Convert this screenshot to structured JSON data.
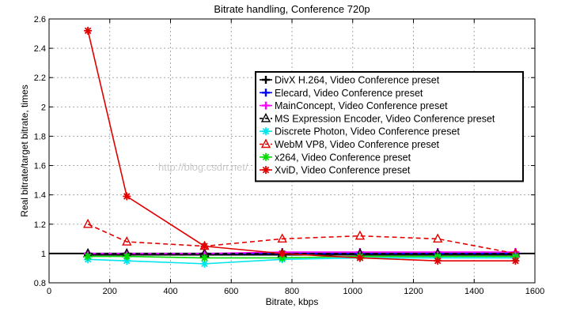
{
  "chart_data": {
    "type": "line",
    "title": "Bitrate handling, Conference 720p",
    "xlabel": "Bitrate, kbps",
    "ylabel": "Real bitrate/target bitrate, times",
    "xlim": [
      0,
      1600
    ],
    "ylim": [
      0.8,
      2.6
    ],
    "xticks": [
      0,
      200,
      400,
      600,
      800,
      1000,
      1200,
      1400,
      1600
    ],
    "yticks": [
      0.8,
      1,
      1.2,
      1.4,
      1.6,
      1.8,
      2,
      2.2,
      2.4,
      2.6
    ],
    "grid": true,
    "legend_position": "center-right",
    "watermark": "http://blog.csdn.net/...",
    "reference_line": {
      "y": 1.0,
      "color": "#000000"
    },
    "series": [
      {
        "name": "DivX H.264, Video Conference preset",
        "color": "#000000",
        "marker": "plus",
        "dash": "solid",
        "x": [
          128,
          256,
          512,
          768,
          1024,
          1280,
          1536
        ],
        "y": [
          0.99,
          0.99,
          0.99,
          0.99,
          0.99,
          0.99,
          0.99
        ]
      },
      {
        "name": "Elecard, Video Conference preset",
        "color": "#0000ff",
        "marker": "plus",
        "dash": "solid",
        "x": [
          128,
          256,
          512,
          768,
          1024,
          1280,
          1536
        ],
        "y": [
          1.0,
          1.0,
          1.0,
          1.0,
          1.0,
          1.0,
          1.0
        ]
      },
      {
        "name": "MainConcept, Video Conference preset",
        "color": "#ff00ff",
        "marker": "plus",
        "dash": "solid",
        "x": [
          128,
          256,
          512,
          768,
          1024,
          1280,
          1536
        ],
        "y": [
          1.0,
          1.0,
          1.0,
          1.01,
          1.01,
          1.01,
          1.01
        ]
      },
      {
        "name": "MS Expression Encoder, Video Conference preset",
        "color": "#000000",
        "marker": "triangle",
        "dash": "dashed",
        "x": [
          128,
          256,
          512,
          768,
          1024,
          1280,
          1536
        ],
        "y": [
          1.0,
          1.0,
          1.0,
          1.0,
          1.0,
          1.0,
          1.0
        ]
      },
      {
        "name": "Discrete Photon, Video Conference preset",
        "color": "#00e5ee",
        "marker": "star",
        "dash": "solid",
        "x": [
          128,
          256,
          512,
          768,
          1024,
          1280,
          1536
        ],
        "y": [
          0.96,
          0.95,
          0.93,
          0.96,
          0.97,
          0.97,
          0.97
        ]
      },
      {
        "name": "WebM VP8, Video Conference preset",
        "color": "#e00000",
        "marker": "triangle",
        "dash": "dashed",
        "x": [
          128,
          256,
          512,
          768,
          1024,
          1280,
          1536
        ],
        "y": [
          1.2,
          1.08,
          1.05,
          1.1,
          1.12,
          1.1,
          1.0
        ]
      },
      {
        "name": "x264, Video Conference preset",
        "color": "#00dd00",
        "marker": "star",
        "dash": "solid",
        "x": [
          128,
          256,
          512,
          768,
          1024,
          1280,
          1536
        ],
        "y": [
          0.98,
          0.98,
          0.97,
          0.97,
          0.98,
          0.98,
          0.98
        ]
      },
      {
        "name": "XviD, Video Conference preset",
        "color": "#e00000",
        "marker": "star",
        "dash": "solid",
        "x": [
          128,
          256,
          512,
          768,
          1024,
          1280,
          1536
        ],
        "y": [
          2.52,
          1.39,
          1.05,
          1.0,
          0.97,
          0.95,
          0.95
        ]
      }
    ]
  }
}
